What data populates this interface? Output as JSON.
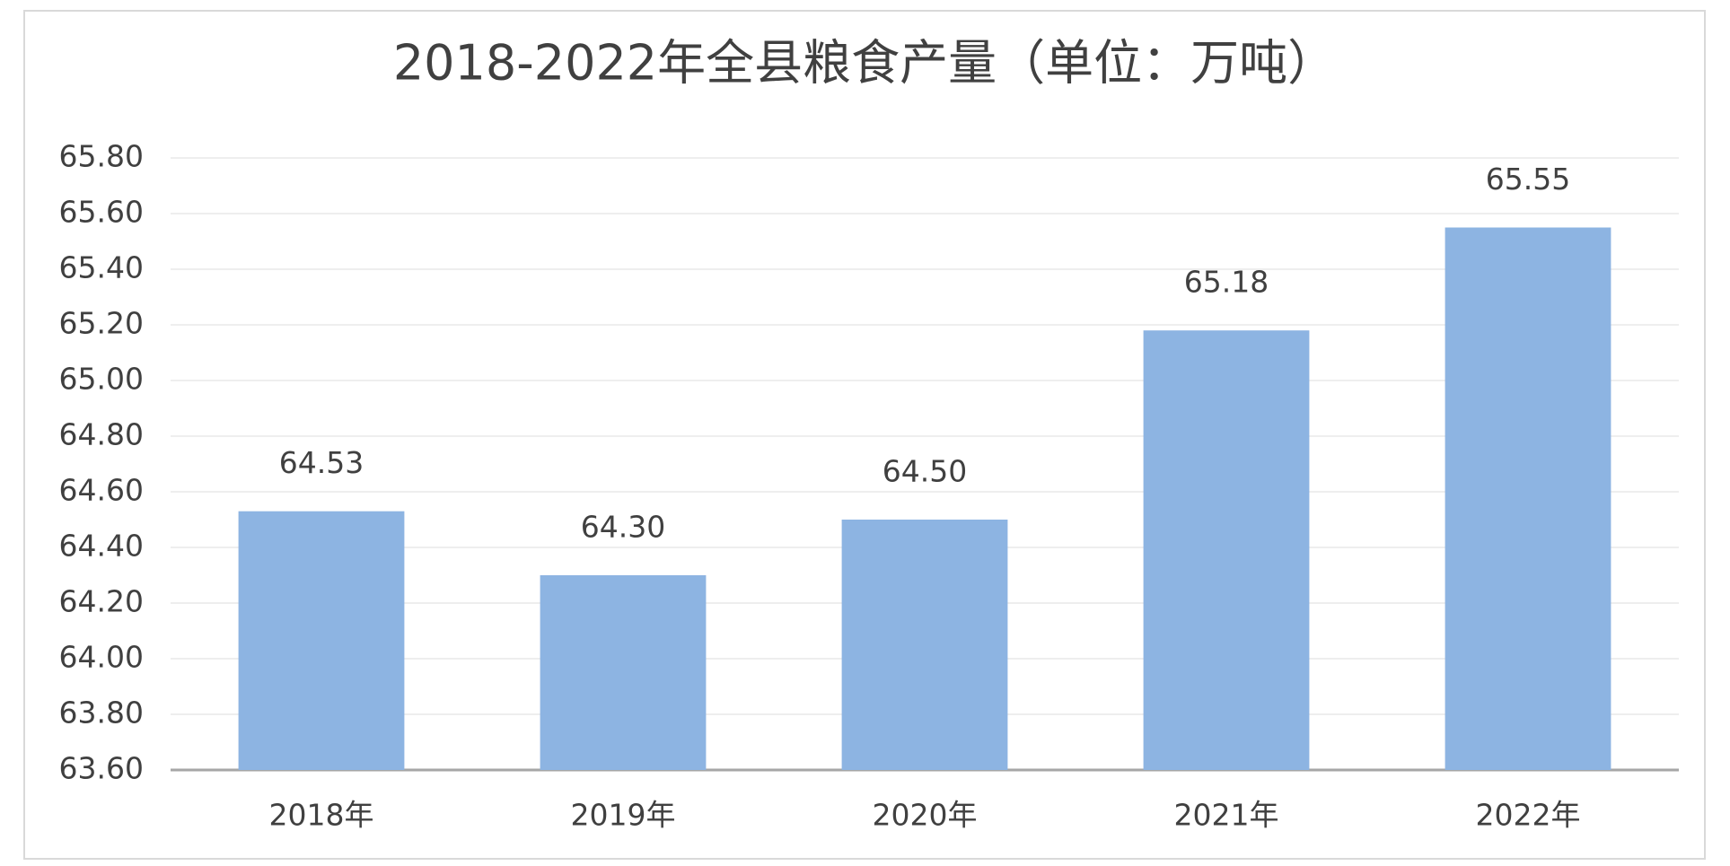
{
  "chart_data": {
    "type": "bar",
    "title": "2018-2022年全县粮食产量（单位：万吨）",
    "categories": [
      "2018年",
      "2019年",
      "2020年",
      "2021年",
      "2022年"
    ],
    "values": [
      64.53,
      64.3,
      64.5,
      65.18,
      65.55
    ],
    "value_labels": [
      "64.53",
      "64.30",
      "64.50",
      "65.18",
      "65.55"
    ],
    "color": "#8db4e2",
    "ylim": [
      63.6,
      65.8
    ],
    "yticks": [
      {
        "value": 63.6,
        "label": "63.60"
      },
      {
        "value": 63.8,
        "label": "63.80"
      },
      {
        "value": 64.0,
        "label": "64.00"
      },
      {
        "value": 64.2,
        "label": "64.20"
      },
      {
        "value": 64.4,
        "label": "64.40"
      },
      {
        "value": 64.6,
        "label": "64.60"
      },
      {
        "value": 64.8,
        "label": "64.80"
      },
      {
        "value": 65.0,
        "label": "65.00"
      },
      {
        "value": 65.2,
        "label": "65.20"
      },
      {
        "value": 65.4,
        "label": "65.40"
      },
      {
        "value": 65.6,
        "label": "65.60"
      },
      {
        "value": 65.8,
        "label": "65.80"
      }
    ],
    "grid": true
  }
}
